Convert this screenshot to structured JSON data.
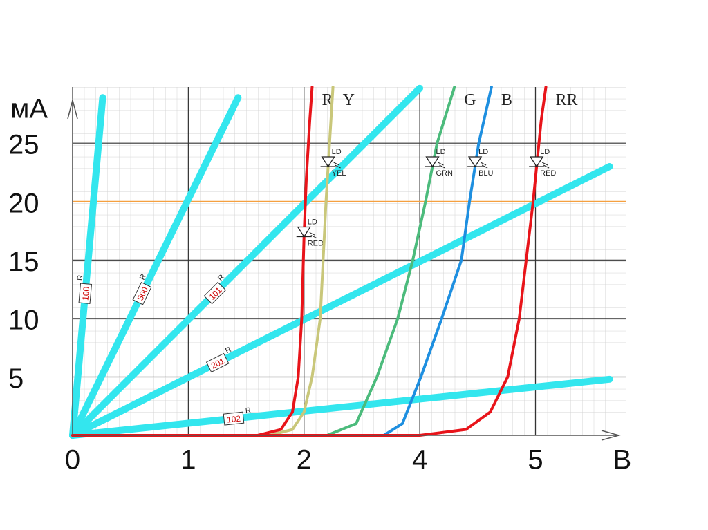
{
  "chart_data": {
    "type": "line",
    "x_label": "В",
    "y_label": "мА",
    "xlim": [
      0,
      4.78
    ],
    "ylim": [
      0,
      29.8
    ],
    "xticks": [
      0,
      1,
      2,
      {
        "value": 3,
        "label": "4"
      },
      {
        "value": 4,
        "label": "5"
      }
    ],
    "yticks": [
      5,
      10,
      15,
      20,
      25
    ],
    "grid": true,
    "reference_line": {
      "value": 20,
      "color": "#f5a040"
    },
    "resistor_prefix": "R",
    "diode_prefix": "LD",
    "series": [
      {
        "name": "100",
        "kind": "resistor",
        "color": "#33e6ee",
        "x": [
          0,
          0.26
        ],
        "values": [
          0,
          28.9
        ]
      },
      {
        "name": "500",
        "kind": "resistor",
        "color": "#33e6ee",
        "x": [
          0,
          1.43
        ],
        "values": [
          0,
          28.9
        ]
      },
      {
        "name": "101",
        "kind": "resistor",
        "color": "#33e6ee",
        "x": [
          0,
          3.0
        ],
        "values": [
          0,
          29.7
        ]
      },
      {
        "name": "201",
        "kind": "resistor",
        "color": "#33e6ee",
        "x": [
          0,
          4.64
        ],
        "values": [
          0,
          23
        ]
      },
      {
        "name": "102",
        "kind": "resistor",
        "color": "#33e6ee",
        "x": [
          0,
          4.64
        ],
        "values": [
          0,
          4.8
        ]
      },
      {
        "name": "R",
        "kind": "diode",
        "tag": "RED",
        "color": "#e8141a",
        "x": [
          0,
          1.6,
          1.8,
          1.9,
          1.95,
          1.98,
          2.0,
          2.02,
          2.05,
          2.07
        ],
        "values": [
          0,
          0,
          0.5,
          2,
          5,
          10,
          17,
          22,
          27,
          29.8
        ]
      },
      {
        "name": "Y",
        "kind": "diode",
        "tag": "YEL",
        "color": "#c9c77a",
        "x": [
          1.7,
          1.9,
          2.0,
          2.07,
          2.14,
          2.19,
          2.25
        ],
        "values": [
          0,
          0.5,
          2,
          5,
          10,
          20,
          29.8
        ]
      },
      {
        "name": "G",
        "kind": "diode",
        "tag": "GRN",
        "color": "#4cbb7c",
        "x": [
          2.2,
          2.45,
          2.63,
          2.81,
          2.94,
          3.05,
          3.15,
          3.3
        ],
        "values": [
          0,
          1,
          5,
          10,
          15,
          20,
          25,
          29.8
        ]
      },
      {
        "name": "B",
        "kind": "diode",
        "tag": "BLU",
        "color": "#1e8fe0",
        "x": [
          2.69,
          2.85,
          3.01,
          3.19,
          3.36,
          3.43,
          3.51,
          3.62
        ],
        "values": [
          0,
          1,
          5,
          10,
          15,
          20,
          25,
          29.8
        ]
      },
      {
        "name": "RR",
        "kind": "diode",
        "tag": "RED",
        "color": "#e8141a",
        "x": [
          0,
          3.0,
          3.4,
          3.61,
          3.76,
          3.86,
          3.98,
          4.05,
          4.09
        ],
        "values": [
          0,
          0,
          0.5,
          2,
          5,
          10,
          20,
          27,
          29.8
        ]
      }
    ]
  }
}
